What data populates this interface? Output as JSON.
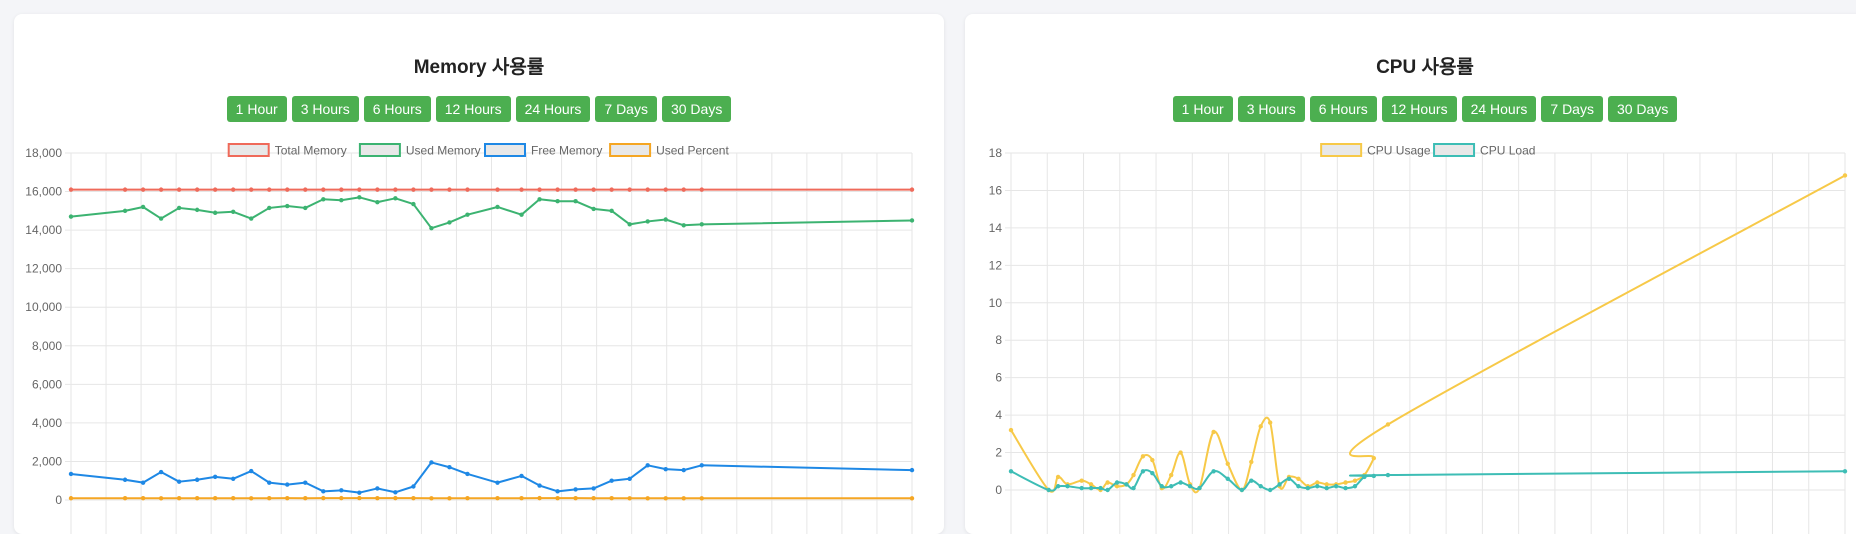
{
  "buttons": [
    "1 Hour",
    "3 Hours",
    "6 Hours",
    "12 Hours",
    "24 Hours",
    "7 Days",
    "30 Days"
  ],
  "colors": {
    "accent": "#4caf50",
    "total": "#ef6a5a",
    "used": "#3cb371",
    "free": "#1e88e5",
    "percent": "#f5a623",
    "cpu_usage": "#f7c948",
    "cpu_load": "#3dbdb5"
  },
  "memory": {
    "title": "Memory 사용률"
  },
  "cpu": {
    "title": "CPU 사용률"
  },
  "chart_data": [
    {
      "type": "line",
      "title": "Memory 사용률",
      "ylim": [
        0,
        18000
      ],
      "yticks": [
        "0",
        "2,000",
        "4,000",
        "6,000",
        "8,000",
        "10,000",
        "12,000",
        "14,000",
        "16,000",
        "18,000"
      ],
      "grid": true,
      "legend_position": "top",
      "x": [
        0,
        0.45,
        0.6,
        0.75,
        0.9,
        1.05,
        1.2,
        1.35,
        1.5,
        1.65,
        1.8,
        1.95,
        2.1,
        2.25,
        2.4,
        2.55,
        2.7,
        2.85,
        3.0,
        3.15,
        3.3,
        3.55,
        3.75,
        3.9,
        4.05,
        4.2,
        4.35,
        4.5,
        4.65,
        4.8,
        4.95,
        5.1,
        5.25,
        7.0
      ],
      "series": [
        {
          "name": "Total Memory",
          "color": "#ef6a5a",
          "values": [
            16100,
            16100,
            16100,
            16100,
            16100,
            16100,
            16100,
            16100,
            16100,
            16100,
            16100,
            16100,
            16100,
            16100,
            16100,
            16100,
            16100,
            16100,
            16100,
            16100,
            16100,
            16100,
            16100,
            16100,
            16100,
            16100,
            16100,
            16100,
            16100,
            16100,
            16100,
            16100,
            16100,
            16100
          ]
        },
        {
          "name": "Used Memory",
          "color": "#3cb371",
          "values": [
            14700,
            15000,
            15200,
            14600,
            15150,
            15050,
            14900,
            14950,
            14600,
            15150,
            15250,
            15150,
            15600,
            15550,
            15700,
            15450,
            15650,
            15350,
            14100,
            14400,
            14800,
            15200,
            14800,
            15600,
            15500,
            15500,
            15100,
            15000,
            14300,
            14450,
            14550,
            14250,
            14300,
            14500
          ]
        },
        {
          "name": "Free Memory",
          "color": "#1e88e5",
          "values": [
            1350,
            1050,
            900,
            1450,
            950,
            1050,
            1200,
            1100,
            1500,
            900,
            800,
            900,
            450,
            500,
            380,
            600,
            400,
            700,
            1950,
            1700,
            1350,
            900,
            1250,
            750,
            450,
            550,
            600,
            1000,
            1100,
            1800,
            1600,
            1550,
            1800,
            1550
          ]
        },
        {
          "name": "Used Percent",
          "color": "#f5a623",
          "values": [
            91,
            93,
            94,
            90,
            94,
            93,
            92,
            92,
            90,
            94,
            95,
            94,
            97,
            97,
            98,
            96,
            97,
            95,
            88,
            89,
            92,
            94,
            92,
            97,
            96,
            96,
            94,
            93,
            89,
            90,
            90,
            88,
            89,
            90
          ]
        }
      ]
    },
    {
      "type": "line",
      "title": "CPU 사용률",
      "ylim": [
        0,
        18
      ],
      "yticks": [
        "0",
        "2",
        "4",
        "6",
        "8",
        "10",
        "12",
        "14",
        "16",
        "18"
      ],
      "grid": true,
      "legend_position": "top",
      "x": [
        0,
        0.8,
        1.0,
        1.2,
        1.5,
        1.7,
        1.9,
        2.05,
        2.25,
        2.45,
        2.6,
        2.8,
        3.0,
        3.2,
        3.4,
        3.6,
        3.8,
        4.0,
        4.3,
        4.6,
        4.9,
        5.1,
        5.3,
        5.5,
        5.7,
        5.9,
        6.1,
        6.3,
        6.5,
        6.7,
        6.9,
        7.1,
        7.3,
        7.5,
        7.7,
        8.0,
        17.7
      ],
      "series": [
        {
          "name": "CPU Usage",
          "color": "#f7c948",
          "values": [
            3.2,
            0.0,
            0.7,
            0.3,
            0.5,
            0.3,
            0.0,
            0.4,
            0.2,
            0.3,
            0.8,
            1.8,
            1.6,
            0.1,
            0.8,
            2.0,
            0.3,
            0.1,
            3.1,
            1.4,
            0.0,
            1.5,
            3.4,
            3.6,
            0.2,
            0.7,
            0.6,
            0.2,
            0.4,
            0.3,
            0.3,
            0.4,
            0.5,
            0.8,
            1.7,
            3.5,
            16.8
          ]
        },
        {
          "name": "CPU Load",
          "color": "#3dbdb5",
          "values": [
            1.0,
            0.0,
            0.2,
            0.2,
            0.1,
            0.1,
            0.1,
            0.0,
            0.4,
            0.3,
            0.1,
            1.0,
            0.9,
            0.2,
            0.2,
            0.4,
            0.2,
            0.1,
            1.0,
            0.6,
            0.0,
            0.5,
            0.2,
            0.0,
            0.3,
            0.6,
            0.2,
            0.1,
            0.2,
            0.1,
            0.2,
            0.1,
            0.2,
            0.7,
            0.75,
            0.8,
            1.0
          ]
        }
      ]
    }
  ]
}
